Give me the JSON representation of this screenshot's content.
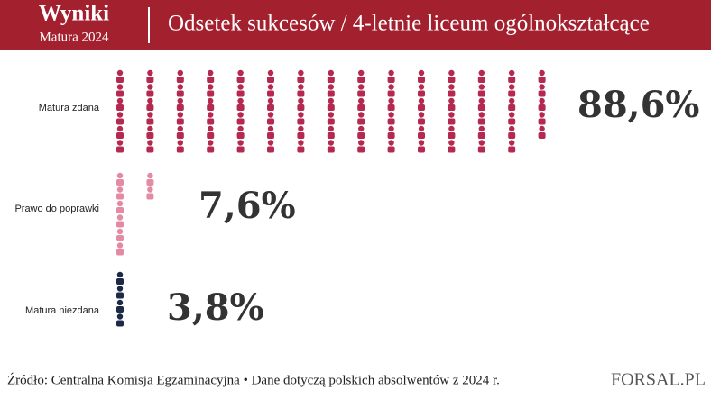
{
  "chart_data": {
    "type": "pictogram",
    "header": "Wyniki",
    "subheader": "Matura  2024",
    "title": "Odsetek sukcesów / 4-letnie liceum ogólnokształcące",
    "categories": [
      "Matura zdana",
      "Prawo do poprawki",
      "Matura niezdana"
    ],
    "values": [
      88.6,
      7.6,
      3.8
    ],
    "value_labels": [
      "88,6%",
      "7,6%",
      "3,8%"
    ],
    "colors": [
      "#b5284f",
      "#e58aa3",
      "#1d2a47"
    ],
    "source": "Źródło: Centralna Komisja Egzaminacyjna • Dane dotyczą polskich absolwentów z 2024 r.",
    "logo": "FORSAL.PL"
  }
}
